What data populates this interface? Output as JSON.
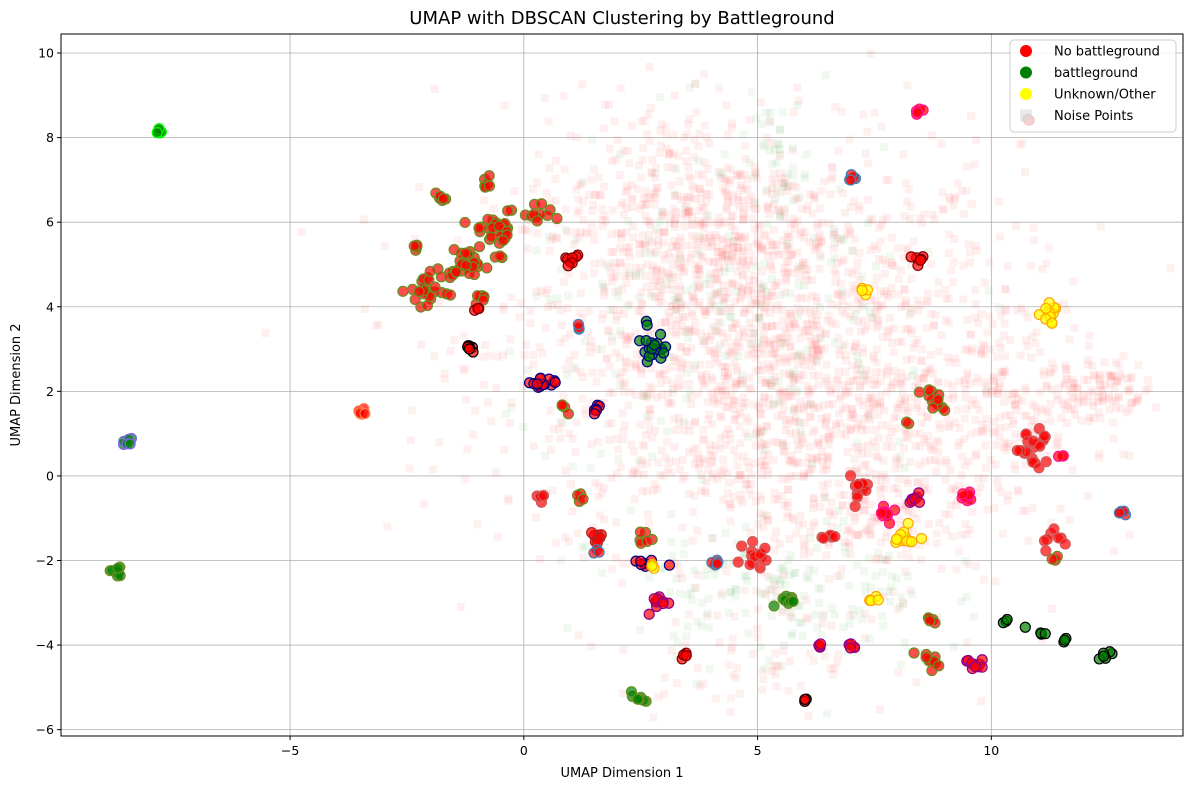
{
  "chart_data": {
    "type": "scatter",
    "title": "UMAP with DBSCAN Clustering by Battleground",
    "xlabel": "UMAP Dimension 1",
    "ylabel": "UMAP Dimension 2",
    "xlim": [
      -9.9,
      14.1
    ],
    "ylim": [
      -6.15,
      10.45
    ],
    "xticks": [
      -5,
      0,
      5,
      10
    ],
    "yticks": [
      -6,
      -4,
      -2,
      0,
      2,
      4,
      6,
      8,
      10
    ],
    "grid": true,
    "legend_position": "top-right",
    "legend": [
      {
        "label": "No battleground",
        "color": "#ff0000",
        "marker": "circle"
      },
      {
        "label": "battleground",
        "color": "#008000",
        "marker": "circle"
      },
      {
        "label": "Unknown/Other",
        "color": "#ffff00",
        "marker": "circle"
      },
      {
        "label": "Noise Points",
        "color": "#d3d3d3",
        "marker": "square"
      }
    ],
    "noise_cloud": [
      {
        "x": 5.0,
        "y": 3.0,
        "sx": 2.8,
        "sy": 2.4,
        "n": 1600,
        "color": "#ff0000"
      },
      {
        "x": 3.5,
        "y": 6.2,
        "sx": 1.6,
        "sy": 1.4,
        "n": 350,
        "color": "#ff0000"
      },
      {
        "x": 7.0,
        "y": 0.2,
        "sx": 1.8,
        "sy": 1.6,
        "n": 400,
        "color": "#ff0000"
      },
      {
        "x": 10.8,
        "y": 2.0,
        "sx": 0.9,
        "sy": 0.9,
        "n": 140,
        "color": "#ff0000"
      },
      {
        "x": 12.3,
        "y": 2.1,
        "sx": 0.5,
        "sy": 0.4,
        "n": 80,
        "color": "#ff0000"
      },
      {
        "x": 5.5,
        "y": -2.8,
        "sx": 1.6,
        "sy": 0.9,
        "n": 170,
        "color": "#008000"
      },
      {
        "x": 4.5,
        "y": 3.5,
        "sx": 2.4,
        "sy": 2.2,
        "n": 220,
        "color": "#008000"
      },
      {
        "x": 5.3,
        "y": 7.8,
        "sx": 0.4,
        "sy": 0.6,
        "n": 35,
        "color": "#008000"
      },
      {
        "x": 5.0,
        "y": -4.3,
        "sx": 1.5,
        "sy": 0.6,
        "n": 60,
        "color": "#ff0000"
      }
    ],
    "clusters": [
      {
        "x": -7.8,
        "y": 8.13,
        "r": 0.07,
        "n": 6,
        "fill": "#008000",
        "edge": "#00ff00"
      },
      {
        "x": -2.0,
        "y": 4.4,
        "r": 0.35,
        "n": 28,
        "fill": "#ff0000",
        "edge": "#6b8e23"
      },
      {
        "x": -1.75,
        "y": 6.6,
        "r": 0.15,
        "n": 6,
        "fill": "#ff0000",
        "edge": "#6b8e23"
      },
      {
        "x": -1.2,
        "y": 5.0,
        "r": 0.3,
        "n": 26,
        "fill": "#ff0000",
        "edge": "#6b8e23"
      },
      {
        "x": -0.6,
        "y": 5.8,
        "r": 0.45,
        "n": 34,
        "fill": "#ff0000",
        "edge": "#6b8e23"
      },
      {
        "x": -0.8,
        "y": 6.9,
        "r": 0.12,
        "n": 6,
        "fill": "#ff0000",
        "edge": "#6b8e23"
      },
      {
        "x": 0.3,
        "y": 6.2,
        "r": 0.25,
        "n": 10,
        "fill": "#ff0000",
        "edge": "#6b8e23"
      },
      {
        "x": -0.95,
        "y": 4.2,
        "r": 0.15,
        "n": 6,
        "fill": "#ff0000",
        "edge": "#6b8e23"
      },
      {
        "x": -2.3,
        "y": 5.45,
        "r": 0.08,
        "n": 4,
        "fill": "#ff0000",
        "edge": "#6b8e23"
      },
      {
        "x": -1.15,
        "y": 3.0,
        "r": 0.1,
        "n": 6,
        "fill": "#ff0000",
        "edge": "#000000"
      },
      {
        "x": -1.0,
        "y": 3.9,
        "r": 0.08,
        "n": 3,
        "fill": "#ff0000",
        "edge": "#800000"
      },
      {
        "x": -3.45,
        "y": 1.5,
        "r": 0.1,
        "n": 6,
        "fill": "#ff0000",
        "edge": "#ff7f50"
      },
      {
        "x": -8.5,
        "y": 0.8,
        "r": 0.1,
        "n": 6,
        "fill": "#008000",
        "edge": "#7b68ee"
      },
      {
        "x": -8.7,
        "y": -2.3,
        "r": 0.12,
        "n": 7,
        "fill": "#008000",
        "edge": "#6b8e23"
      },
      {
        "x": 0.4,
        "y": 2.15,
        "r": 0.2,
        "n": 14,
        "fill": "#ff0000",
        "edge": "#000080"
      },
      {
        "x": 1.0,
        "y": 5.15,
        "r": 0.18,
        "n": 8,
        "fill": "#ff0000",
        "edge": "#800000"
      },
      {
        "x": 1.2,
        "y": 3.5,
        "r": 0.08,
        "n": 3,
        "fill": "#ff0000",
        "edge": "#4682b4"
      },
      {
        "x": 1.55,
        "y": 1.6,
        "r": 0.12,
        "n": 6,
        "fill": "#ff0000",
        "edge": "#000080"
      },
      {
        "x": 0.8,
        "y": 1.65,
        "r": 0.1,
        "n": 4,
        "fill": "#ff0000",
        "edge": "#6b8e23"
      },
      {
        "x": 0.4,
        "y": -0.5,
        "r": 0.12,
        "n": 5,
        "fill": "#ff0000",
        "edge": "#cd5c5c"
      },
      {
        "x": 1.2,
        "y": -0.5,
        "r": 0.1,
        "n": 4,
        "fill": "#ff0000",
        "edge": "#6b8e23"
      },
      {
        "x": 2.75,
        "y": 2.95,
        "r": 0.28,
        "n": 18,
        "fill": "#008000",
        "edge": "#000080"
      },
      {
        "x": 2.6,
        "y": 3.6,
        "r": 0.05,
        "n": 2,
        "fill": "#008000",
        "edge": "#000080"
      },
      {
        "x": 1.55,
        "y": -1.45,
        "r": 0.15,
        "n": 8,
        "fill": "#ff0000",
        "edge": "#b22222"
      },
      {
        "x": 1.55,
        "y": -1.8,
        "r": 0.08,
        "n": 3,
        "fill": "#ff0000",
        "edge": "#4682b4"
      },
      {
        "x": 2.65,
        "y": -1.5,
        "r": 0.15,
        "n": 6,
        "fill": "#ff0000",
        "edge": "#6b8e23"
      },
      {
        "x": 2.6,
        "y": -2.0,
        "r": 0.2,
        "n": 8,
        "fill": "#ff0000",
        "edge": "#000080"
      },
      {
        "x": 2.75,
        "y": -2.15,
        "r": 0.08,
        "n": 3,
        "fill": "#ffff00",
        "edge": "#ffa500"
      },
      {
        "x": 2.95,
        "y": -2.95,
        "r": 0.2,
        "n": 10,
        "fill": "#ff0000",
        "edge": "#8b008b"
      },
      {
        "x": 2.4,
        "y": -5.2,
        "r": 0.15,
        "n": 7,
        "fill": "#008000",
        "edge": "#6b8e23"
      },
      {
        "x": 3.45,
        "y": -4.3,
        "r": 0.08,
        "n": 4,
        "fill": "#ff0000",
        "edge": "#800000"
      },
      {
        "x": 4.2,
        "y": -2.1,
        "r": 0.12,
        "n": 5,
        "fill": "#ff0000",
        "edge": "#4682b4"
      },
      {
        "x": 5.0,
        "y": -1.9,
        "r": 0.25,
        "n": 14,
        "fill": "#ff0000",
        "edge": "#cd5c5c"
      },
      {
        "x": 5.65,
        "y": -2.95,
        "r": 0.18,
        "n": 10,
        "fill": "#008000",
        "edge": "#6b8e23"
      },
      {
        "x": 6.0,
        "y": -5.3,
        "r": 0.05,
        "n": 3,
        "fill": "#ff0000",
        "edge": "#000000"
      },
      {
        "x": 6.3,
        "y": -4.0,
        "r": 0.1,
        "n": 4,
        "fill": "#ff0000",
        "edge": "#8b008b"
      },
      {
        "x": 6.55,
        "y": -1.4,
        "r": 0.15,
        "n": 6,
        "fill": "#ff0000",
        "edge": "#cd5c5c"
      },
      {
        "x": 7.0,
        "y": -4.05,
        "r": 0.1,
        "n": 5,
        "fill": "#ff0000",
        "edge": "#8b008b"
      },
      {
        "x": 7.15,
        "y": -0.3,
        "r": 0.25,
        "n": 14,
        "fill": "#ff0000",
        "edge": "#cd5c5c"
      },
      {
        "x": 7.0,
        "y": 7.0,
        "r": 0.08,
        "n": 5,
        "fill": "#ff0000",
        "edge": "#4682b4"
      },
      {
        "x": 7.3,
        "y": 4.4,
        "r": 0.08,
        "n": 4,
        "fill": "#ffff00",
        "edge": "#ffa500"
      },
      {
        "x": 7.5,
        "y": -2.9,
        "r": 0.1,
        "n": 5,
        "fill": "#ffff00",
        "edge": "#ffa500"
      },
      {
        "x": 7.7,
        "y": -0.9,
        "r": 0.2,
        "n": 10,
        "fill": "#ff0000",
        "edge": "#ff1493"
      },
      {
        "x": 8.2,
        "y": -1.45,
        "r": 0.2,
        "n": 12,
        "fill": "#ffff00",
        "edge": "#ffa500"
      },
      {
        "x": 8.35,
        "y": -0.6,
        "r": 0.15,
        "n": 8,
        "fill": "#ff0000",
        "edge": "#8b008b"
      },
      {
        "x": 8.4,
        "y": 5.15,
        "r": 0.12,
        "n": 6,
        "fill": "#ff0000",
        "edge": "#800000"
      },
      {
        "x": 8.45,
        "y": 8.6,
        "r": 0.08,
        "n": 5,
        "fill": "#ff0000",
        "edge": "#ff1493"
      },
      {
        "x": 8.8,
        "y": 1.8,
        "r": 0.25,
        "n": 12,
        "fill": "#ff0000",
        "edge": "#6b8e23"
      },
      {
        "x": 8.2,
        "y": 1.25,
        "r": 0.05,
        "n": 2,
        "fill": "#ff0000",
        "edge": "#6b8e23"
      },
      {
        "x": 9.5,
        "y": -0.5,
        "r": 0.15,
        "n": 10,
        "fill": "#ff0000",
        "edge": "#ff1493"
      },
      {
        "x": 8.7,
        "y": -3.4,
        "r": 0.12,
        "n": 5,
        "fill": "#ff0000",
        "edge": "#6b8e23"
      },
      {
        "x": 8.6,
        "y": -4.35,
        "r": 0.2,
        "n": 10,
        "fill": "#ff0000",
        "edge": "#6b8e23"
      },
      {
        "x": 9.6,
        "y": -4.5,
        "r": 0.2,
        "n": 10,
        "fill": "#ff0000",
        "edge": "#8b008b"
      },
      {
        "x": 10.3,
        "y": -3.45,
        "r": 0.05,
        "n": 3,
        "fill": "#008000",
        "edge": "#000000"
      },
      {
        "x": 10.75,
        "y": -3.6,
        "r": 0.03,
        "n": 1,
        "fill": "#008000",
        "edge": "#000000"
      },
      {
        "x": 11.1,
        "y": -3.75,
        "r": 0.05,
        "n": 3,
        "fill": "#008000",
        "edge": "#000000"
      },
      {
        "x": 11.55,
        "y": -3.9,
        "r": 0.05,
        "n": 3,
        "fill": "#008000",
        "edge": "#000000"
      },
      {
        "x": 12.45,
        "y": -4.2,
        "r": 0.12,
        "n": 6,
        "fill": "#008000",
        "edge": "#000000"
      },
      {
        "x": 10.9,
        "y": 0.7,
        "r": 0.35,
        "n": 22,
        "fill": "#ff0000",
        "edge": "#cd5c5c"
      },
      {
        "x": 11.3,
        "y": -1.5,
        "r": 0.25,
        "n": 8,
        "fill": "#ff0000",
        "edge": "#cd5c5c"
      },
      {
        "x": 11.35,
        "y": -1.95,
        "r": 0.06,
        "n": 3,
        "fill": "#ff0000",
        "edge": "#6b8e23"
      },
      {
        "x": 11.3,
        "y": 3.8,
        "r": 0.2,
        "n": 12,
        "fill": "#ffff00",
        "edge": "#ffa500"
      },
      {
        "x": 11.5,
        "y": 0.45,
        "r": 0.05,
        "n": 3,
        "fill": "#ff0000",
        "edge": "#ff1493"
      },
      {
        "x": 12.8,
        "y": -0.85,
        "r": 0.1,
        "n": 5,
        "fill": "#ff0000",
        "edge": "#4682b4"
      },
      {
        "x": 10.8,
        "y": 8.4,
        "r": 0.05,
        "n": 2,
        "fill": "#ff0000",
        "edge": "#800000"
      }
    ]
  }
}
